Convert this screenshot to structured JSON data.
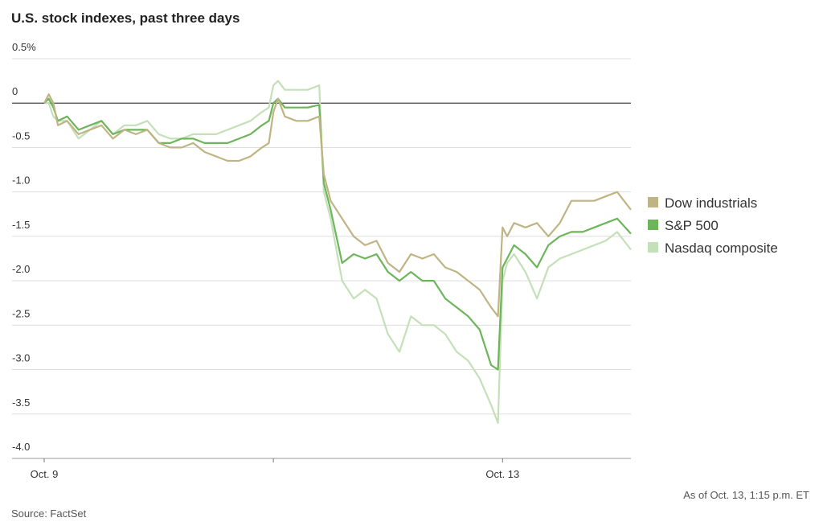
{
  "chart_data": {
    "type": "line",
    "title": "U.S. stock indexes, past three days",
    "source": "Source: FactSet",
    "note": "As of Oct. 13, 1:15 p.m. ET",
    "x": [
      0,
      0.02,
      0.04,
      0.06,
      0.1,
      0.15,
      0.2,
      0.25,
      0.3,
      0.35,
      0.4,
      0.45,
      0.5,
      0.55,
      0.6,
      0.65,
      0.7,
      0.75,
      0.8,
      0.85,
      0.9,
      0.95,
      0.98,
      1.0,
      1.02,
      1.05,
      1.1,
      1.15,
      1.2,
      1.22,
      1.25,
      1.3,
      1.35,
      1.4,
      1.45,
      1.5,
      1.55,
      1.6,
      1.65,
      1.7,
      1.75,
      1.8,
      1.85,
      1.9,
      1.95,
      1.98,
      2.0,
      2.02,
      2.05,
      2.1,
      2.15,
      2.2,
      2.25,
      2.3,
      2.35,
      2.4,
      2.45,
      2.5,
      2.56
    ],
    "series": [
      {
        "name": "Dow industrials",
        "color": "#bfb483",
        "values": [
          0,
          0.1,
          0.0,
          -0.25,
          -0.2,
          -0.35,
          -0.3,
          -0.25,
          -0.4,
          -0.3,
          -0.35,
          -0.3,
          -0.45,
          -0.5,
          -0.5,
          -0.45,
          -0.55,
          -0.6,
          -0.65,
          -0.65,
          -0.6,
          -0.5,
          -0.45,
          -0.1,
          0.05,
          -0.15,
          -0.2,
          -0.2,
          -0.15,
          -0.8,
          -1.1,
          -1.3,
          -1.5,
          -1.6,
          -1.55,
          -1.8,
          -1.9,
          -1.7,
          -1.75,
          -1.7,
          -1.85,
          -1.9,
          -2.0,
          -2.1,
          -2.3,
          -2.4,
          -1.4,
          -1.5,
          -1.35,
          -1.4,
          -1.35,
          -1.5,
          -1.35,
          -1.1,
          -1.1,
          -1.1,
          -1.05,
          -1.0,
          -1.2
        ]
      },
      {
        "name": "S&P 500",
        "color": "#6db55a",
        "values": [
          0,
          0.05,
          -0.05,
          -0.2,
          -0.15,
          -0.3,
          -0.25,
          -0.2,
          -0.35,
          -0.3,
          -0.3,
          -0.3,
          -0.45,
          -0.45,
          -0.4,
          -0.4,
          -0.45,
          -0.45,
          -0.45,
          -0.4,
          -0.35,
          -0.25,
          -0.2,
          0.0,
          0.05,
          -0.05,
          -0.05,
          -0.05,
          -0.02,
          -0.9,
          -1.2,
          -1.8,
          -1.7,
          -1.75,
          -1.7,
          -1.9,
          -2.0,
          -1.9,
          -2.0,
          -2.0,
          -2.2,
          -2.3,
          -2.4,
          -2.55,
          -2.95,
          -3.0,
          -1.85,
          -1.75,
          -1.6,
          -1.7,
          -1.85,
          -1.6,
          -1.5,
          -1.45,
          -1.45,
          -1.4,
          -1.35,
          -1.3,
          -1.47
        ]
      },
      {
        "name": "Nasdaq composite",
        "color": "#c4e0b8",
        "values": [
          0,
          0.0,
          -0.15,
          -0.2,
          -0.2,
          -0.4,
          -0.3,
          -0.2,
          -0.35,
          -0.25,
          -0.25,
          -0.2,
          -0.35,
          -0.4,
          -0.4,
          -0.35,
          -0.35,
          -0.35,
          -0.3,
          -0.25,
          -0.2,
          -0.1,
          -0.05,
          0.2,
          0.25,
          0.15,
          0.15,
          0.15,
          0.2,
          -1.0,
          -1.3,
          -2.0,
          -2.2,
          -2.1,
          -2.2,
          -2.6,
          -2.8,
          -2.4,
          -2.5,
          -2.5,
          -2.6,
          -2.8,
          -2.9,
          -3.1,
          -3.4,
          -3.6,
          -2.0,
          -1.8,
          -1.7,
          -1.9,
          -2.2,
          -1.85,
          -1.75,
          -1.7,
          -1.65,
          -1.6,
          -1.55,
          -1.45,
          -1.65
        ]
      }
    ],
    "xlim": [
      0,
      2.56
    ],
    "xticks": [
      {
        "value": 0,
        "label": "Oct. 9"
      },
      {
        "value": 1,
        "label": null
      },
      {
        "value": 2,
        "label": "Oct. 13"
      }
    ],
    "ylim": [
      -4,
      0.5
    ],
    "yticks": [
      {
        "value": 0.5,
        "label": "0.5%"
      },
      0,
      -0.5,
      {
        "value": -1,
        "label": "-1.0"
      },
      -1.5,
      {
        "value": -2,
        "label": "-2.0"
      },
      -2.5,
      {
        "value": -3,
        "label": "-3.0"
      },
      -3.5,
      {
        "value": -4,
        "label": "-4.0"
      }
    ],
    "grid": true,
    "legend": "right"
  }
}
